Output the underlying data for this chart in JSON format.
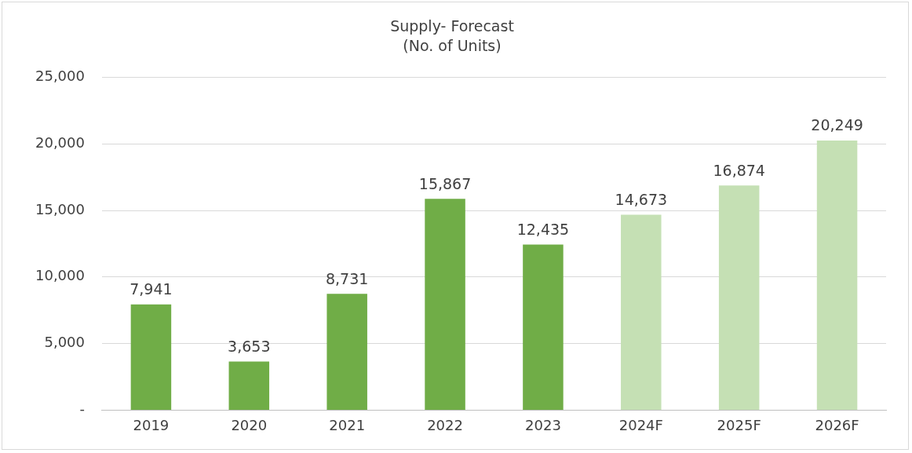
{
  "chart_data": {
    "type": "bar",
    "title": "Supply- Forecast",
    "subtitle": "(No. of Units)",
    "categories": [
      "2019",
      "2020",
      "2021",
      "2022",
      "2023",
      "2024F",
      "2025F",
      "2026F"
    ],
    "values": [
      7941,
      3653,
      8731,
      15867,
      12435,
      14673,
      16874,
      20249
    ],
    "colors": [
      "#70ad47",
      "#70ad47",
      "#70ad47",
      "#70ad47",
      "#70ad47",
      "#c5e0b4",
      "#c5e0b4",
      "#c5e0b4"
    ],
    "value_labels": [
      "7,941",
      "3,653",
      "8,731",
      "15,867",
      "12,435",
      "14,673",
      "16,874",
      "20,249"
    ],
    "ylim": [
      0,
      25000
    ],
    "yticks": [
      {
        "value": 0,
        "label": "-"
      },
      {
        "value": 5000,
        "label": "5,000"
      },
      {
        "value": 10000,
        "label": "10,000"
      },
      {
        "value": 15000,
        "label": "15,000"
      },
      {
        "value": 20000,
        "label": "20,000"
      },
      {
        "value": 25000,
        "label": "25,000"
      }
    ],
    "grid": "y",
    "legend": false
  }
}
